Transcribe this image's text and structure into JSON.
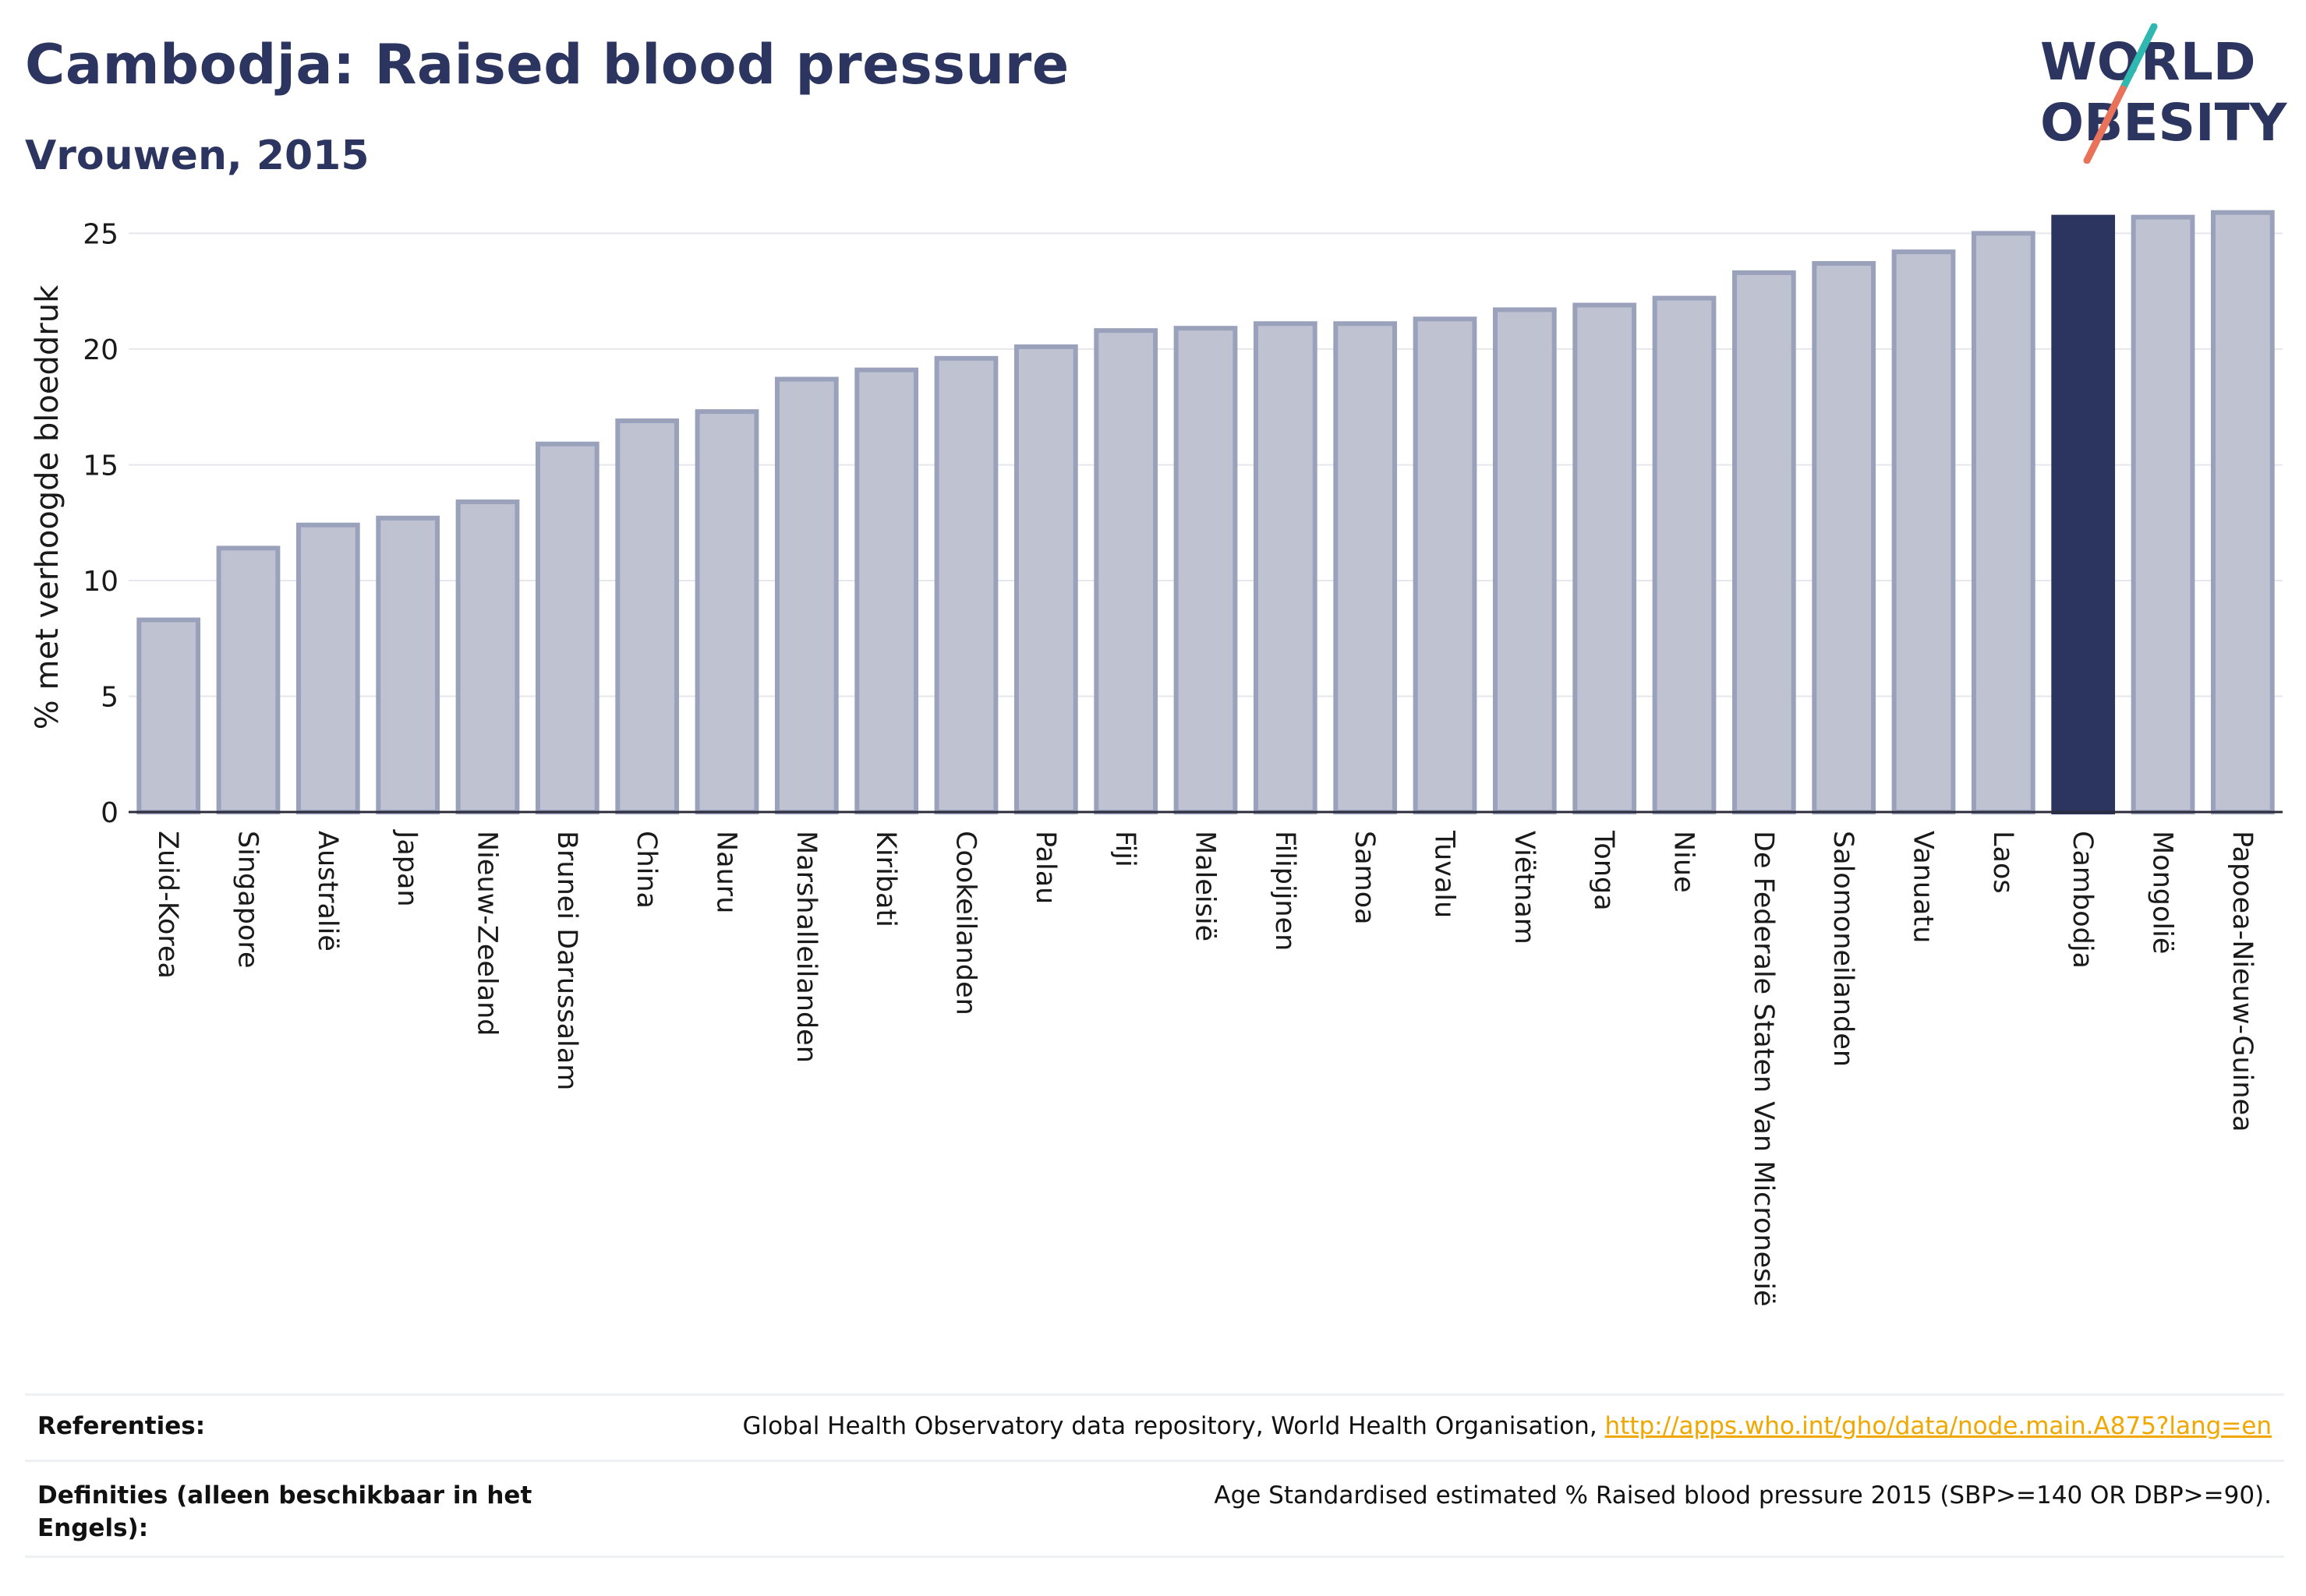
{
  "title": "Cambodja: Raised blood pressure",
  "subtitle": "Vrouwen, 2015",
  "logo": {
    "line1": "WORLD",
    "line2": "OBESITY",
    "colors": {
      "text": "#2c3560",
      "slash_top": "#2fb8b0",
      "slash_bottom": "#e8735a"
    }
  },
  "colors": {
    "bar_fill": "#bfc3d1",
    "bar_stroke": "#9aa1bb",
    "highlight": "#2c3560",
    "grid": "#e6e7ec",
    "axis": "#2c2c3c"
  },
  "chart_data": {
    "type": "bar",
    "ylabel": "% met verhoogde bloeddruk",
    "ylim": [
      0,
      27
    ],
    "yticks": [
      0,
      5,
      10,
      15,
      20,
      25
    ],
    "grid": true,
    "highlight": "Cambodja",
    "categories": [
      "Zuid-Korea",
      "Singapore",
      "Australië",
      "Japan",
      "Nieuw-Zeeland",
      "Brunei Darussalam",
      "China",
      "Nauru",
      "Marshalleilanden",
      "Kiribati",
      "Cookeilanden",
      "Palau",
      "Fiji",
      "Maleisië",
      "Filipijnen",
      "Samoa",
      "Tuvalu",
      "Viëtnam",
      "Tonga",
      "Niue",
      "De Federale Staten Van Micronesië",
      "Salomoneilanden",
      "Vanuatu",
      "Laos",
      "Cambodja",
      "Mongolië",
      "Papoea-Nieuw-Guinea"
    ],
    "values": [
      8.3,
      11.4,
      12.4,
      12.7,
      13.4,
      15.9,
      16.9,
      17.3,
      18.7,
      19.1,
      19.6,
      20.1,
      20.8,
      20.9,
      21.1,
      21.1,
      21.3,
      21.7,
      21.9,
      22.2,
      23.3,
      23.7,
      24.2,
      25.0,
      25.7,
      25.7,
      25.9
    ]
  },
  "references": {
    "ref_label": "Referenties:",
    "ref_text": "Global Health Observatory data repository, World Health Organisation, ",
    "ref_link": "http://apps.who.int/gho/data/node.main.A875?lang=en",
    "def_label": "Definities (alleen beschikbaar in het Engels):",
    "def_text": "Age Standardised estimated % Raised blood pressure 2015 (SBP>=140 OR DBP>=90)."
  }
}
